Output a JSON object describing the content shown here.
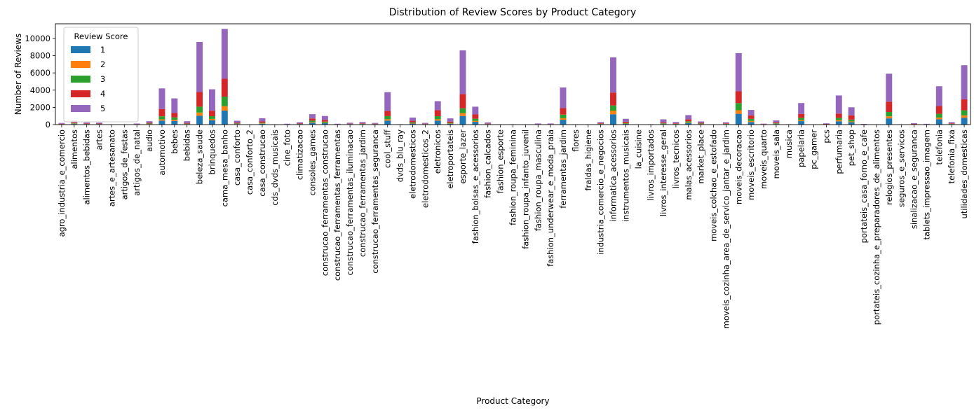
{
  "chart_data": {
    "type": "bar",
    "stacked": true,
    "title": "Distribution of Review Scores by Product Category",
    "xlabel": "Product Category",
    "ylabel": "Number of Reviews",
    "ylim": [
      0,
      11700
    ],
    "yticks": [
      0,
      2000,
      4000,
      6000,
      8000,
      10000
    ],
    "legend": {
      "title": "Review Score",
      "placement": "top-left"
    },
    "categories": [
      "agro_industria_e_comercio",
      "alimentos",
      "alimentos_bebidas",
      "artes",
      "artes_e_artesanato",
      "artigos_de_festas",
      "artigos_de_natal",
      "audio",
      "automotivo",
      "bebes",
      "bebidas",
      "beleza_saude",
      "brinquedos",
      "cama_mesa_banho",
      "casa_conforto",
      "casa_conforto_2",
      "casa_construcao",
      "cds_dvds_musicais",
      "cine_foto",
      "climatizacao",
      "consoles_games",
      "construcao_ferramentas_construcao",
      "construcao_ferramentas_ferramentas",
      "construcao_ferramentas_iluminacao",
      "construcao_ferramentas_jardim",
      "construcao_ferramentas_seguranca",
      "cool_stuff",
      "dvds_blu_ray",
      "eletrodomesticos",
      "eletrodomesticos_2",
      "eletronicos",
      "eletroportateis",
      "esporte_lazer",
      "fashion_bolsas_e_acessorios",
      "fashion_calcados",
      "fashion_esporte",
      "fashion_roupa_feminina",
      "fashion_roupa_infanto_juvenil",
      "fashion_roupa_masculina",
      "fashion_underwear_e_moda_praia",
      "ferramentas_jardim",
      "flores",
      "fraldas_higiene",
      "industria_comercio_e_negocios",
      "informatica_acessorios",
      "instrumentos_musicais",
      "la_cuisine",
      "livros_importados",
      "livros_interesse_geral",
      "livros_tecnicos",
      "malas_acessorios",
      "market_place",
      "moveis_colchao_e_estofado",
      "moveis_cozinha_area_de_servico_jantar_e_jardim",
      "moveis_decoracao",
      "moveis_escritorio",
      "moveis_quarto",
      "moveis_sala",
      "musica",
      "papelaria",
      "pc_gamer",
      "pcs",
      "perfumaria",
      "pet_shop",
      "portateis_casa_forno_e_cafe",
      "portateis_cozinha_e_preparadores_de_alimentos",
      "relogios_presentes",
      "seguros_e_servicos",
      "sinalizacao_e_seguranca",
      "tablets_impressao_imagem",
      "telefonia",
      "telefonia_fixa",
      "utilidades_domesticas"
    ],
    "series": [
      {
        "name": "1",
        "color": "#1f77b4",
        "values": [
          30,
          75,
          35,
          35,
          5,
          5,
          15,
          60,
          460,
          420,
          55,
          1020,
          490,
          1630,
          65,
          5,
          100,
          5,
          15,
          30,
          220,
          160,
          15,
          30,
          40,
          30,
          460,
          5,
          120,
          30,
          460,
          100,
          1000,
          320,
          30,
          5,
          5,
          5,
          15,
          15,
          560,
          5,
          5,
          50,
          1200,
          80,
          5,
          5,
          70,
          40,
          180,
          60,
          5,
          40,
          1250,
          300,
          20,
          70,
          5,
          400,
          5,
          20,
          380,
          280,
          10,
          5,
          720,
          5,
          20,
          15,
          620,
          40,
          800
        ]
      },
      {
        "name": "2",
        "color": "#ff7f0e",
        "values": [
          10,
          20,
          10,
          10,
          2,
          2,
          5,
          20,
          150,
          150,
          15,
          380,
          170,
          500,
          20,
          2,
          40,
          2,
          5,
          10,
          70,
          50,
          5,
          10,
          15,
          10,
          160,
          2,
          40,
          10,
          160,
          30,
          330,
          110,
          10,
          2,
          2,
          2,
          5,
          5,
          180,
          2,
          2,
          15,
          420,
          30,
          2,
          2,
          20,
          15,
          60,
          20,
          2,
          15,
          420,
          120,
          8,
          25,
          2,
          120,
          2,
          8,
          130,
          90,
          3,
          2,
          240,
          2,
          8,
          5,
          200,
          15,
          270
        ]
      },
      {
        "name": "3",
        "color": "#2ca02c",
        "values": [
          20,
          50,
          25,
          25,
          5,
          5,
          10,
          50,
          350,
          270,
          40,
          680,
          310,
          1120,
          50,
          5,
          80,
          5,
          10,
          30,
          170,
          130,
          10,
          25,
          30,
          25,
          360,
          5,
          100,
          25,
          350,
          70,
          560,
          250,
          25,
          5,
          5,
          5,
          10,
          10,
          420,
          5,
          5,
          35,
          600,
          70,
          5,
          5,
          60,
          35,
          140,
          50,
          5,
          30,
          820,
          250,
          15,
          60,
          5,
          270,
          5,
          15,
          270,
          210,
          8,
          5,
          500,
          5,
          15,
          10,
          430,
          30,
          590
        ]
      },
      {
        "name": "4",
        "color": "#d62728",
        "values": [
          40,
          100,
          60,
          50,
          10,
          10,
          30,
          80,
          850,
          500,
          80,
          1700,
          640,
          2070,
          100,
          10,
          150,
          10,
          20,
          50,
          250,
          200,
          20,
          40,
          50,
          40,
          600,
          10,
          180,
          40,
          700,
          150,
          1650,
          500,
          45,
          10,
          10,
          5,
          30,
          30,
          750,
          10,
          10,
          60,
          1500,
          150,
          5,
          10,
          110,
          60,
          240,
          80,
          10,
          60,
          1370,
          400,
          25,
          110,
          10,
          450,
          5,
          35,
          500,
          500,
          15,
          5,
          1200,
          5,
          35,
          20,
          900,
          60,
          1270
        ]
      },
      {
        "name": "5",
        "color": "#9467bd",
        "values": [
          90,
          250,
          120,
          110,
          20,
          20,
          65,
          180,
          2390,
          1700,
          200,
          5810,
          2490,
          5790,
          215,
          20,
          370,
          20,
          50,
          150,
          500,
          460,
          50,
          110,
          160,
          90,
          2190,
          25,
          380,
          95,
          1050,
          370,
          5080,
          900,
          140,
          20,
          25,
          15,
          70,
          70,
          2400,
          20,
          20,
          130,
          4080,
          340,
          15,
          25,
          350,
          150,
          480,
          160,
          20,
          125,
          4440,
          630,
          40,
          220,
          25,
          1260,
          10,
          70,
          2100,
          930,
          40,
          10,
          3250,
          10,
          80,
          40,
          2300,
          140,
          3960
        ]
      }
    ]
  }
}
